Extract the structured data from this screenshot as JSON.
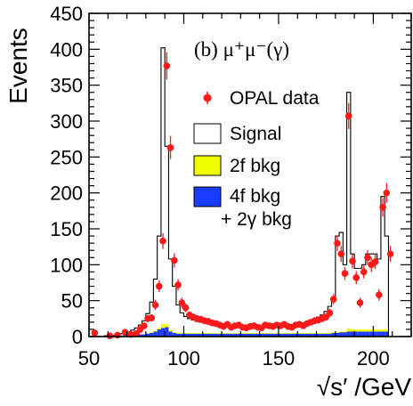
{
  "chart_data": {
    "type": "histogram",
    "panel_label": "(b) μ⁺μ⁻(γ)",
    "xlabel": "√s′ /GeV",
    "ylabel": "Events",
    "xlim": [
      50,
      220
    ],
    "ylim": [
      0,
      450
    ],
    "x_ticks": [
      50,
      100,
      150,
      200
    ],
    "y_ticks": [
      0,
      50,
      100,
      150,
      200,
      250,
      300,
      350,
      400,
      450
    ],
    "grid": false,
    "legend_position": "top-right",
    "legend": [
      {
        "key": "data",
        "label": "OPAL data",
        "style": "red-marker"
      },
      {
        "key": "signal",
        "label": "Signal",
        "style": "open-box"
      },
      {
        "key": "bkg2f",
        "label": "2f bkg",
        "style": "yellow-fill"
      },
      {
        "key": "bkg4f",
        "label": "4f bkg",
        "label2": "+ 2γ  bkg",
        "style": "blue-fill"
      }
    ],
    "colors": {
      "data": "#ff1a1a",
      "signal_line": "#000000",
      "bkg2f": "#eeff00",
      "bkg4f": "#1a3cff"
    },
    "bin_edges": [
      50,
      52,
      54,
      56,
      58,
      60,
      62,
      64,
      66,
      68,
      70,
      72,
      74,
      76,
      78,
      80,
      82,
      84,
      86,
      88,
      90,
      92,
      94,
      96,
      98,
      100,
      102,
      104,
      106,
      108,
      110,
      112,
      114,
      116,
      118,
      120,
      122,
      124,
      126,
      128,
      130,
      132,
      134,
      136,
      138,
      140,
      142,
      144,
      146,
      148,
      150,
      152,
      154,
      156,
      158,
      160,
      162,
      164,
      166,
      168,
      170,
      172,
      174,
      176,
      178,
      180,
      182,
      184,
      186,
      188,
      190,
      192,
      194,
      196,
      198,
      200,
      202,
      204,
      206,
      208,
      210,
      212,
      214,
      216,
      218,
      220
    ],
    "signal_total": [
      0,
      0,
      0,
      0,
      1,
      2,
      2,
      3,
      4,
      5,
      6,
      9,
      12,
      16,
      22,
      32,
      48,
      80,
      140,
      402,
      265,
      108,
      70,
      44,
      33,
      28,
      25,
      23,
      21,
      20,
      19,
      18,
      17,
      16,
      16,
      15,
      15,
      14,
      14,
      14,
      14,
      14,
      14,
      14,
      14,
      14,
      14,
      14,
      14,
      15,
      15,
      15,
      16,
      16,
      17,
      18,
      19,
      20,
      22,
      24,
      27,
      30,
      35,
      42,
      52,
      140,
      145,
      100,
      340,
      115,
      95,
      95,
      100,
      115,
      115,
      115,
      108,
      195,
      140,
      0,
      0,
      0,
      0,
      0,
      0
    ],
    "bkg_2f": [
      0,
      0,
      0,
      0,
      0,
      0,
      0,
      0,
      0,
      0,
      0,
      0,
      0,
      0,
      0,
      0,
      1,
      1,
      2,
      6,
      4,
      2,
      1,
      1,
      1,
      1,
      1,
      1,
      1,
      1,
      1,
      1,
      1,
      1,
      1,
      1,
      1,
      1,
      1,
      1,
      1,
      1,
      1,
      1,
      1,
      1,
      1,
      1,
      1,
      1,
      1,
      1,
      1,
      1,
      1,
      1,
      1,
      1,
      1,
      1,
      1,
      1,
      1,
      1,
      1,
      1,
      1,
      1,
      4,
      3,
      3,
      3,
      3,
      3,
      3,
      3,
      3,
      3,
      3,
      0,
      0,
      0,
      0,
      0,
      0
    ],
    "bkg_4f_2g": [
      0,
      0,
      0,
      0,
      0,
      1,
      1,
      1,
      1,
      2,
      2,
      2,
      2,
      3,
      3,
      4,
      5,
      7,
      10,
      12,
      13,
      7,
      5,
      4,
      4,
      4,
      4,
      4,
      4,
      4,
      4,
      4,
      4,
      4,
      4,
      4,
      4,
      4,
      4,
      4,
      4,
      4,
      4,
      4,
      4,
      4,
      4,
      4,
      4,
      4,
      4,
      4,
      4,
      4,
      4,
      4,
      4,
      4,
      4,
      4,
      4,
      4,
      4,
      4,
      5,
      5,
      6,
      6,
      7,
      7,
      7,
      7,
      7,
      7,
      7,
      7,
      7,
      7,
      7,
      0,
      0,
      0,
      0,
      0,
      0
    ],
    "data_points": [
      {
        "x": 53,
        "y": 5,
        "err": 2
      },
      {
        "x": 61,
        "y": 1,
        "err": 1
      },
      {
        "x": 65,
        "y": 2,
        "err": 1
      },
      {
        "x": 69,
        "y": 6,
        "err": 2
      },
      {
        "x": 72,
        "y": 3,
        "err": 2
      },
      {
        "x": 75,
        "y": 4,
        "err": 2
      },
      {
        "x": 77,
        "y": 10,
        "err": 3
      },
      {
        "x": 79,
        "y": 15,
        "err": 4
      },
      {
        "x": 81,
        "y": 25,
        "err": 5
      },
      {
        "x": 83,
        "y": 26,
        "err": 5
      },
      {
        "x": 85,
        "y": 44,
        "err": 7
      },
      {
        "x": 87,
        "y": 70,
        "err": 8
      },
      {
        "x": 89,
        "y": 133,
        "err": 11
      },
      {
        "x": 91,
        "y": 377,
        "err": 19
      },
      {
        "x": 93,
        "y": 263,
        "err": 16
      },
      {
        "x": 95,
        "y": 106,
        "err": 10
      },
      {
        "x": 97,
        "y": 72,
        "err": 8
      },
      {
        "x": 99,
        "y": 47,
        "err": 7
      },
      {
        "x": 101,
        "y": 40,
        "err": 6
      },
      {
        "x": 103,
        "y": 30,
        "err": 5
      },
      {
        "x": 105,
        "y": 27,
        "err": 5
      },
      {
        "x": 107,
        "y": 25,
        "err": 5
      },
      {
        "x": 109,
        "y": 24,
        "err": 5
      },
      {
        "x": 111,
        "y": 22,
        "err": 5
      },
      {
        "x": 113,
        "y": 21,
        "err": 5
      },
      {
        "x": 115,
        "y": 19,
        "err": 4
      },
      {
        "x": 117,
        "y": 18,
        "err": 4
      },
      {
        "x": 119,
        "y": 16,
        "err": 4
      },
      {
        "x": 121,
        "y": 14,
        "err": 4
      },
      {
        "x": 123,
        "y": 17,
        "err": 4
      },
      {
        "x": 125,
        "y": 13,
        "err": 4
      },
      {
        "x": 127,
        "y": 15,
        "err": 4
      },
      {
        "x": 129,
        "y": 16,
        "err": 4
      },
      {
        "x": 131,
        "y": 13,
        "err": 4
      },
      {
        "x": 133,
        "y": 12,
        "err": 3
      },
      {
        "x": 135,
        "y": 14,
        "err": 4
      },
      {
        "x": 137,
        "y": 15,
        "err": 4
      },
      {
        "x": 139,
        "y": 13,
        "err": 4
      },
      {
        "x": 141,
        "y": 12,
        "err": 3
      },
      {
        "x": 143,
        "y": 16,
        "err": 4
      },
      {
        "x": 145,
        "y": 15,
        "err": 4
      },
      {
        "x": 147,
        "y": 14,
        "err": 4
      },
      {
        "x": 149,
        "y": 16,
        "err": 4
      },
      {
        "x": 151,
        "y": 15,
        "err": 4
      },
      {
        "x": 153,
        "y": 17,
        "err": 4
      },
      {
        "x": 155,
        "y": 14,
        "err": 4
      },
      {
        "x": 157,
        "y": 13,
        "err": 4
      },
      {
        "x": 159,
        "y": 16,
        "err": 4
      },
      {
        "x": 161,
        "y": 17,
        "err": 4
      },
      {
        "x": 163,
        "y": 15,
        "err": 4
      },
      {
        "x": 165,
        "y": 18,
        "err": 4
      },
      {
        "x": 167,
        "y": 20,
        "err": 4
      },
      {
        "x": 169,
        "y": 22,
        "err": 5
      },
      {
        "x": 171,
        "y": 23,
        "err": 5
      },
      {
        "x": 173,
        "y": 25,
        "err": 5
      },
      {
        "x": 175,
        "y": 27,
        "err": 5
      },
      {
        "x": 177,
        "y": 33,
        "err": 6
      },
      {
        "x": 179,
        "y": 52,
        "err": 7
      },
      {
        "x": 181,
        "y": 130,
        "err": 11
      },
      {
        "x": 183,
        "y": 115,
        "err": 11
      },
      {
        "x": 185,
        "y": 88,
        "err": 9
      },
      {
        "x": 187,
        "y": 307,
        "err": 18
      },
      {
        "x": 189,
        "y": 105,
        "err": 10
      },
      {
        "x": 191,
        "y": 82,
        "err": 9
      },
      {
        "x": 193,
        "y": 47,
        "err": 7
      },
      {
        "x": 195,
        "y": 90,
        "err": 9
      },
      {
        "x": 197,
        "y": 110,
        "err": 10
      },
      {
        "x": 199,
        "y": 100,
        "err": 10
      },
      {
        "x": 201,
        "y": 104,
        "err": 10
      },
      {
        "x": 203,
        "y": 58,
        "err": 8
      },
      {
        "x": 205,
        "y": 180,
        "err": 13
      },
      {
        "x": 207,
        "y": 200,
        "err": 14
      },
      {
        "x": 209,
        "y": 115,
        "err": 11
      }
    ]
  }
}
